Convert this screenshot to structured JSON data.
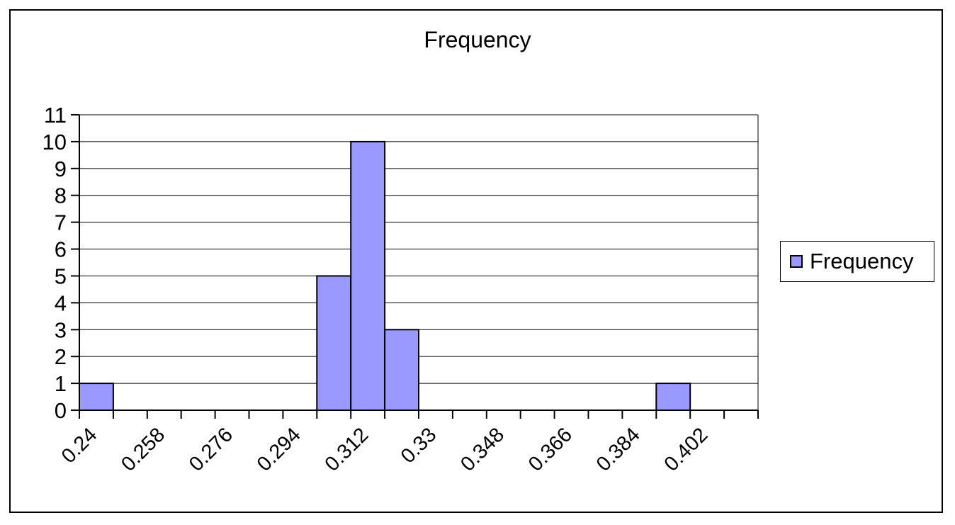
{
  "chart_data": {
    "type": "bar",
    "title": "Frequency",
    "xlabel": "",
    "ylabel": "",
    "ylim": [
      0,
      11
    ],
    "yticks": [
      0,
      1,
      2,
      3,
      4,
      5,
      6,
      7,
      8,
      9,
      10,
      11
    ],
    "categories": [
      "0.24",
      "0.258",
      "0.276",
      "0.294",
      "0.312",
      "0.33",
      "0.348",
      "0.366",
      "0.384",
      "0.402"
    ],
    "tick_labels": [
      "0.24",
      "0.258",
      "0.276",
      "0.294",
      "0.312",
      "0.33",
      "0.348",
      "0.366",
      "0.384",
      "0.402"
    ],
    "bins": [
      {
        "start": 0.24,
        "end": 0.249,
        "value": 1
      },
      {
        "start": 0.303,
        "end": 0.312,
        "value": 5
      },
      {
        "start": 0.312,
        "end": 0.321,
        "value": 10
      },
      {
        "start": 0.321,
        "end": 0.33,
        "value": 3
      },
      {
        "start": 0.393,
        "end": 0.402,
        "value": 1
      }
    ],
    "x_range": [
      0.24,
      0.42
    ],
    "series": [
      {
        "name": "Frequency",
        "color": "#9999ff"
      }
    ],
    "grid": "horizontal",
    "legend": "right"
  }
}
